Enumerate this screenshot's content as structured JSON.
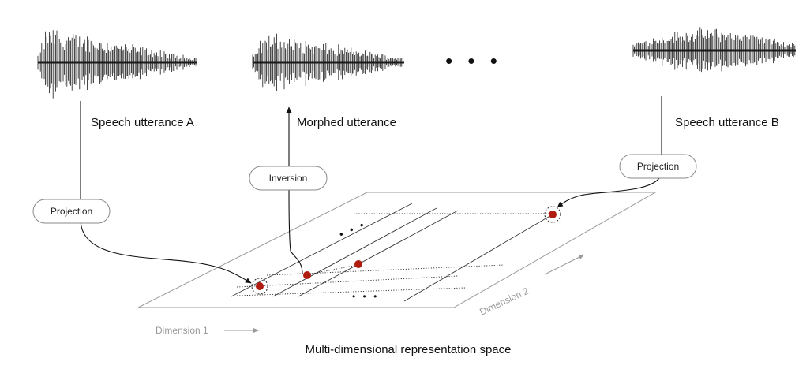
{
  "diagram": {
    "utterances": {
      "a_label": "Speech utterance A",
      "morphed_label": "Morphed utterance",
      "b_label": "Speech utterance B",
      "ellipsis": "• • •"
    },
    "operations": {
      "projection_a": "Projection",
      "inversion": "Inversion",
      "projection_b": "Projection"
    },
    "space": {
      "dimension_1": "Dimension 1",
      "dimension_2": "Dimension 2",
      "caption": "Multi-dimensional representation space",
      "grid_ellipsis": "• • •"
    },
    "colors": {
      "point": "#b01c10",
      "waveform": "#1a1a1a",
      "plane_border": "#9a9a9a",
      "dimension_text": "#9a9a9a"
    }
  }
}
